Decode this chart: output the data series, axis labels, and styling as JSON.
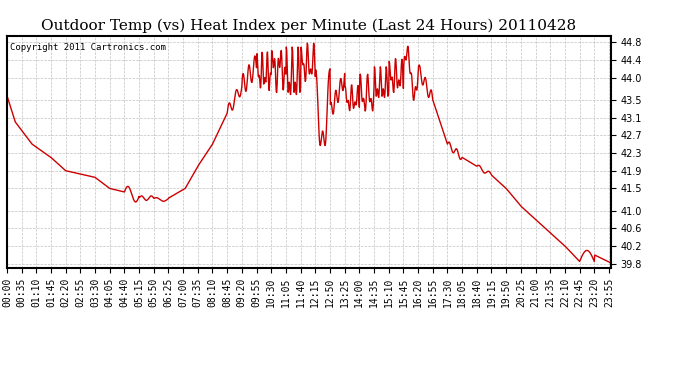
{
  "title": "Outdoor Temp (vs) Heat Index per Minute (Last 24 Hours) 20110428",
  "copyright_text": "Copyright 2011 Cartronics.com",
  "line_color": "#cc0000",
  "background_color": "#ffffff",
  "plot_bg_color": "#ffffff",
  "grid_color": "#bbbbbb",
  "ylim": [
    39.7,
    44.95
  ],
  "yticks": [
    39.8,
    40.2,
    40.6,
    41.0,
    41.5,
    41.9,
    42.3,
    42.7,
    43.1,
    43.5,
    44.0,
    44.4,
    44.8
  ],
  "title_fontsize": 11,
  "tick_fontsize": 7,
  "line_width": 1.0
}
